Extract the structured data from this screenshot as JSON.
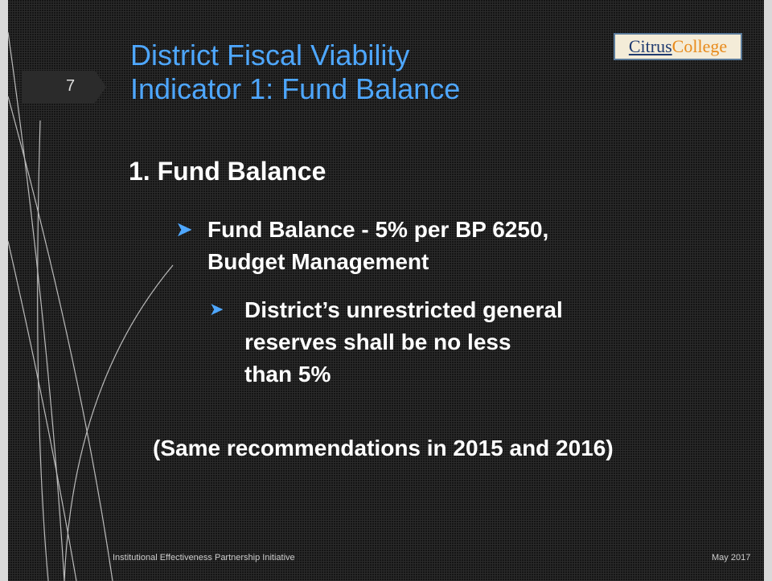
{
  "slide": {
    "number": "7",
    "title": [
      "District Fiscal Viability",
      "Indicator 1: Fund Balance"
    ],
    "logo": [
      "Citrus",
      "College"
    ],
    "heading": "1. Fund Balance",
    "bullet1": [
      "Fund Balance - 5% per BP 6250,",
      "Budget Management"
    ],
    "bullet2": [
      "District’s unrestricted general",
      "reserves shall be no less",
      "than 5%"
    ],
    "note": "(Same recommendations in 2015 and 2016)",
    "footer_left": "Institutional Effectiveness Partnership Initiative",
    "footer_right": "May 2017"
  }
}
